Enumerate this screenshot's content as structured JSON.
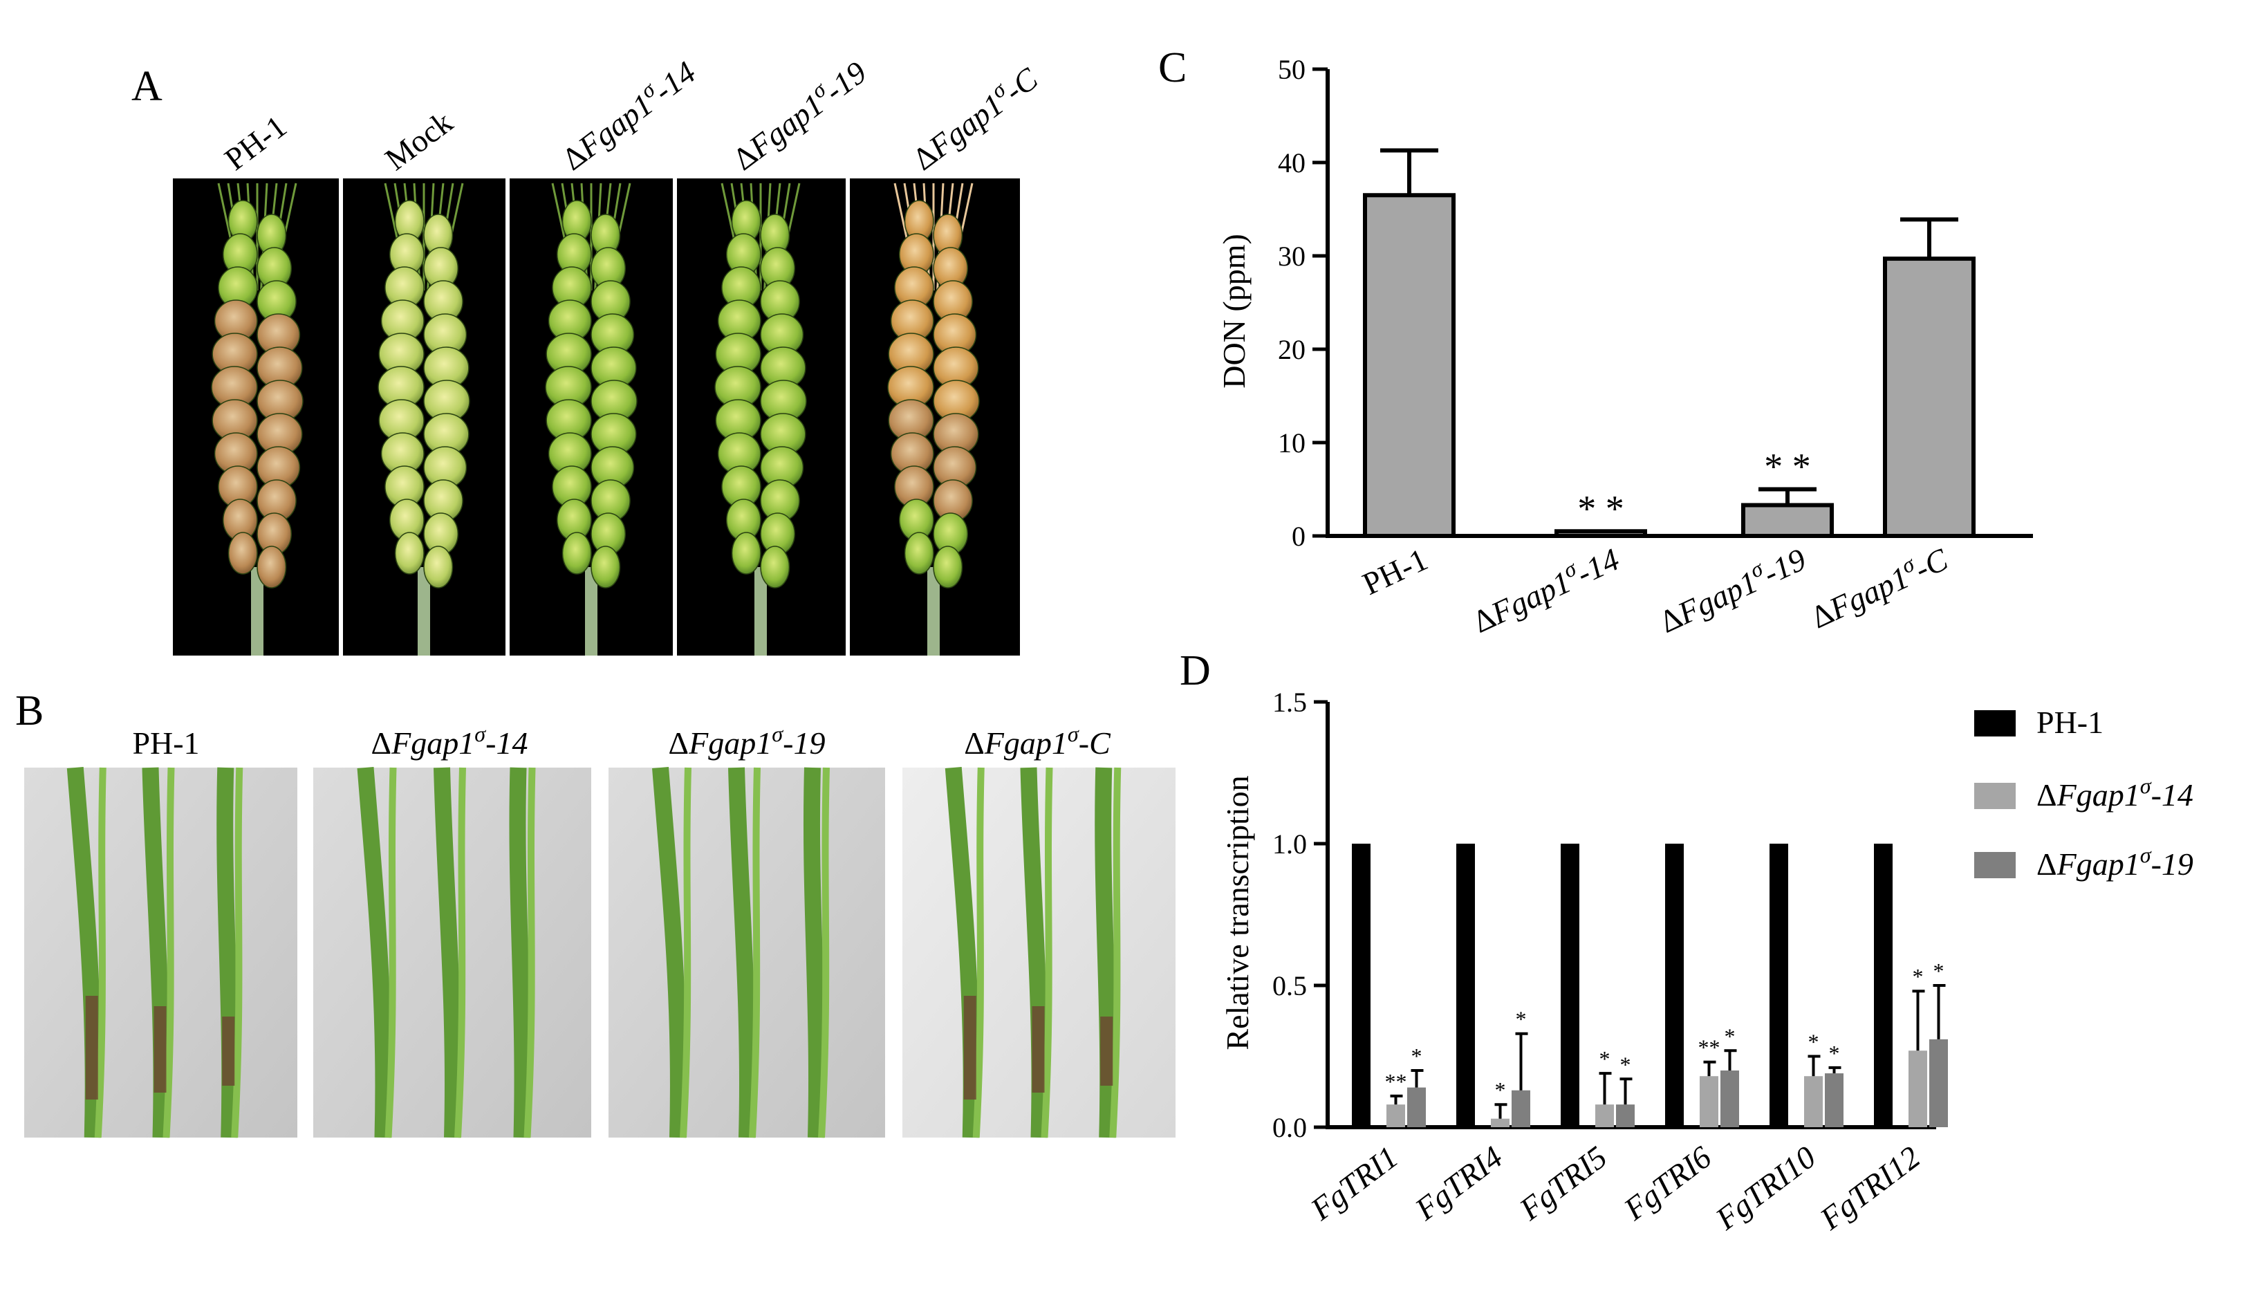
{
  "panels": {
    "a": "A",
    "b": "B",
    "c": "C",
    "d": "D"
  },
  "panel_a": {
    "labels": [
      "PH-1",
      "Mock",
      "ΔFgap1σ-14",
      "ΔFgap1σ-19",
      "ΔFgap1σ-C"
    ]
  },
  "panel_b": {
    "labels": [
      "PH-1",
      "ΔFgap1σ-14",
      "ΔFgap1σ-19",
      "ΔFgap1σ-C"
    ]
  },
  "chart_data": [
    {
      "type": "bar",
      "panel": "C",
      "title": "",
      "ylabel": "DON (ppm)",
      "xlabel": "",
      "categories": [
        "PH-1",
        "ΔFgap1σ-14",
        "ΔFgap1σ-19",
        "ΔFgap1σ-C"
      ],
      "values": [
        36.5,
        0.5,
        3.3,
        29.7
      ],
      "errors": [
        4.8,
        0.0,
        1.7,
        4.2
      ],
      "significance": [
        "",
        "**",
        "**",
        ""
      ],
      "ylim": [
        0,
        50
      ],
      "yticks": [
        0,
        10,
        20,
        30,
        40,
        50
      ],
      "bar_color": "#a6a6a6",
      "grid": false
    },
    {
      "type": "bar",
      "panel": "D",
      "title": "",
      "ylabel": "Relative transcription",
      "xlabel": "",
      "categories": [
        "FgTRI1",
        "FgTRI4",
        "FgTRI5",
        "FgTRI6",
        "FgTRI10",
        "FgTRI12"
      ],
      "series": [
        {
          "name": "PH-1",
          "values": [
            1.0,
            1.0,
            1.0,
            1.0,
            1.0,
            1.0
          ],
          "errors": [
            0,
            0,
            0,
            0,
            0,
            0
          ],
          "significance": [
            "",
            "",
            "",
            "",
            "",
            ""
          ],
          "color": "#000000"
        },
        {
          "name": "ΔFgap1σ-14",
          "values": [
            0.08,
            0.03,
            0.08,
            0.18,
            0.18,
            0.27
          ],
          "errors": [
            0.03,
            0.05,
            0.11,
            0.05,
            0.07,
            0.21
          ],
          "significance": [
            "**",
            "*",
            "*",
            "**",
            "*",
            "*"
          ],
          "color": "#a6a6a6"
        },
        {
          "name": "ΔFgap1σ-19",
          "values": [
            0.14,
            0.13,
            0.08,
            0.2,
            0.19,
            0.31
          ],
          "errors": [
            0.06,
            0.2,
            0.09,
            0.07,
            0.02,
            0.19
          ],
          "significance": [
            "*",
            "*",
            "*",
            "*",
            "*",
            "*"
          ],
          "color": "#7f7f7f"
        }
      ],
      "ylim": [
        0,
        1.5
      ],
      "yticks": [
        0.0,
        0.5,
        1.0,
        1.5
      ],
      "ytick_labels": [
        "0.0",
        "0.5",
        "1.0",
        "1.5"
      ],
      "legend": "top-right",
      "grid": false
    }
  ]
}
